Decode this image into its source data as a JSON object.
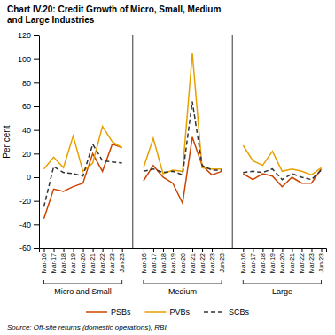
{
  "chart_data": {
    "type": "line",
    "title": "Chart IV.20: Credit Growth of Micro, Small, Medium\nand Large Industries",
    "y_label": "Per cent",
    "annotations": [
      "Source: Off-site returns (domestic operations), RBI."
    ],
    "groups": [
      "Micro and Small",
      "Medium",
      "Large"
    ],
    "categories": [
      "Mar-16",
      "Mar-17",
      "Mar-18",
      "Mar-19",
      "Mar-20",
      "Mar-21",
      "Mar-22",
      "Mar-23",
      "Jun-23",
      "Mar-16",
      "Mar-17",
      "Mar-18",
      "Mar-19",
      "Mar-20",
      "Mar-21",
      "Mar-22",
      "Mar-23",
      "Jun-23",
      "Mar-16",
      "Mar-17",
      "Mar-18",
      "Mar-19",
      "Mar-20",
      "Mar-21",
      "Mar-22",
      "Mar-23",
      "Jun-23"
    ],
    "series": [
      {
        "name": "PSBs",
        "color": "#cc4400",
        "line_style": "solid",
        "values": [
          -35,
          -10,
          -12,
          -8,
          -5,
          20,
          5,
          28,
          25,
          -3,
          10,
          0,
          -5,
          -22,
          34,
          10,
          2,
          5,
          3,
          -2,
          3,
          1,
          -8,
          0,
          -5,
          -5,
          7
        ]
      },
      {
        "name": "PVBs",
        "color": "#e8a000",
        "line_style": "solid",
        "values": [
          7,
          17,
          8,
          35,
          5,
          12,
          43,
          30,
          25,
          8,
          33,
          3,
          6,
          5,
          105,
          8,
          7,
          7,
          27,
          14,
          10,
          22,
          5,
          7,
          5,
          2,
          8
        ]
      },
      {
        "name": "SCBs",
        "color": "#333333",
        "line_style": "dashed",
        "values": [
          -25,
          9,
          4,
          3,
          1,
          28,
          14,
          13,
          12,
          5,
          7,
          4,
          5,
          2,
          64,
          10,
          6,
          6,
          4,
          5,
          4,
          7,
          -2,
          3,
          0,
          -2,
          6
        ]
      }
    ],
    "ylim": [
      -60,
      120
    ],
    "yticks": [
      -60,
      -40,
      -20,
      0,
      20,
      40,
      60,
      80,
      100,
      120
    ],
    "grid": false,
    "legend": "bottom"
  }
}
